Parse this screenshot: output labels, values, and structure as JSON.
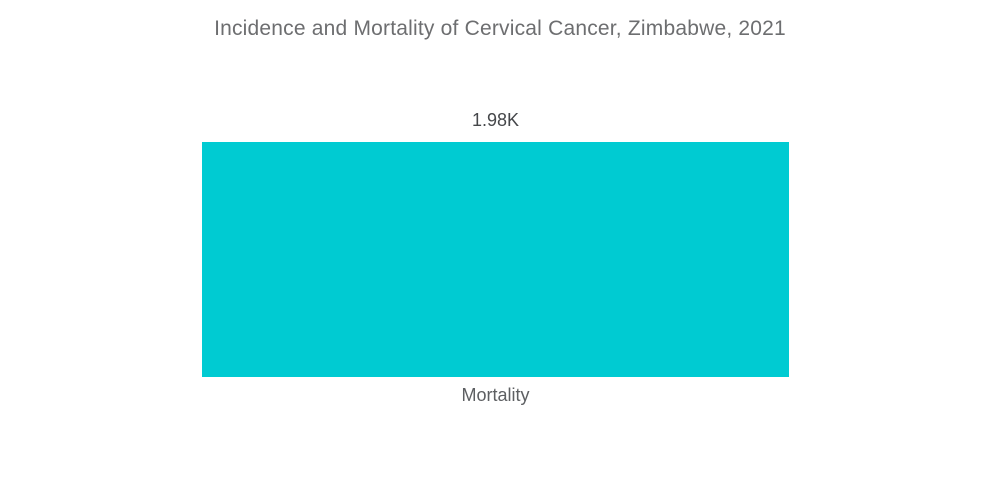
{
  "page": {
    "background": "#ffffff"
  },
  "chart_data": {
    "type": "bar",
    "title": "Incidence and Mortality of Cervical Cancer, Zimbabwe, 2021",
    "categories": [
      "Mortality"
    ],
    "values": [
      1980
    ],
    "value_labels": [
      "1.98K"
    ],
    "xlabel": "",
    "ylabel": "",
    "ylim": [
      0,
      1980
    ],
    "grid": false,
    "legend": false,
    "axes_visible": false,
    "bar_color": "#00cbd2",
    "title_color": "#6d6e70",
    "value_label_color": "#45474a",
    "category_label_color": "#5d5f62"
  }
}
